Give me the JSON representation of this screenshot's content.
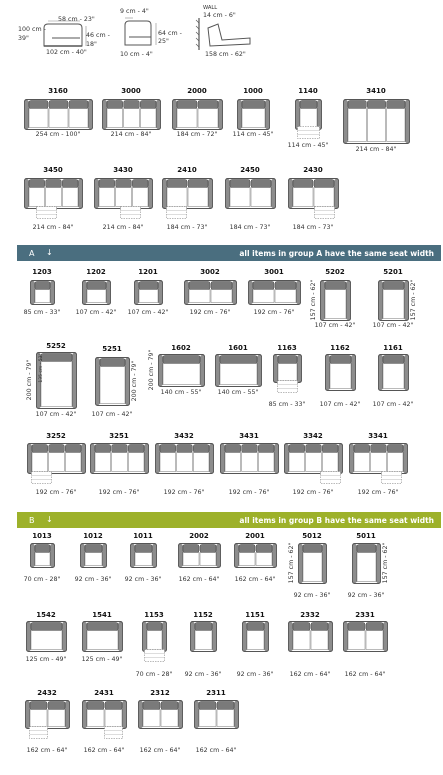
{
  "top_dims": {
    "d1_cm": "58 cm - 23\"",
    "d2_cm": "100 cm -",
    "d2_in": "39\"",
    "d3_cm": "46 cm -",
    "d3_in": "18\"",
    "d4": "102 cm - 40\"",
    "d5": "9 cm - 4\"",
    "d6_cm": "64 cm -",
    "d6_in": "25\"",
    "d7": "10 cm - 4\"",
    "wall": "WALL",
    "d8": "14 cm - 6\"",
    "d9": "158 cm - 62\""
  },
  "band_a": {
    "label": "A",
    "arrow": "↓",
    "note": "all items in group A have the same seat width",
    "color": "#4a6e7f"
  },
  "band_b": {
    "label": "B",
    "arrow": "↓",
    "note": "all items in group B have the same seat width",
    "color": "#9db12a"
  },
  "units": [
    {
      "id": "u3160",
      "code": "3160",
      "dim": "254 cm - 100\""
    },
    {
      "id": "u3000",
      "code": "3000",
      "dim": "214 cm - 84\""
    },
    {
      "id": "u2000",
      "code": "2000",
      "dim": "184 cm - 72\""
    },
    {
      "id": "u1000",
      "code": "1000",
      "dim": "114 cm - 45\""
    },
    {
      "id": "u1140",
      "code": "1140",
      "dim": "114 cm - 45\""
    },
    {
      "id": "u3410",
      "code": "3410",
      "dim": "214 cm - 84\""
    },
    {
      "id": "u3450",
      "code": "3450",
      "dim": "214 cm - 84\""
    },
    {
      "id": "u3430",
      "code": "3430",
      "dim": "214 cm - 84\""
    },
    {
      "id": "u2410",
      "code": "2410",
      "dim": "184 cm - 73\""
    },
    {
      "id": "u2450",
      "code": "2450",
      "dim": "184 cm - 73\""
    },
    {
      "id": "u2430",
      "code": "2430",
      "dim": "184 cm - 73\""
    },
    {
      "id": "u1203",
      "code": "1203",
      "dim": "85 cm - 33\""
    },
    {
      "id": "u1202",
      "code": "1202",
      "dim": "107 cm - 42\""
    },
    {
      "id": "u1201",
      "code": "1201",
      "dim": "107 cm - 42\""
    },
    {
      "id": "u3002",
      "code": "3002",
      "dim": "192 cm - 76\""
    },
    {
      "id": "u3001",
      "code": "3001",
      "dim": "192 cm - 76\""
    },
    {
      "id": "u5202",
      "code": "5202",
      "dim": "107 cm - 42\"",
      "side": "157 cm - 62\""
    },
    {
      "id": "u5201",
      "code": "5201",
      "dim": "107 cm - 42\"",
      "side": "157 cm - 62\""
    },
    {
      "id": "u5252",
      "code": "5252",
      "dim": "107 cm - 42\"",
      "side": "200 cm - 79\"",
      "inner": "135 cm - 53\""
    },
    {
      "id": "u5251",
      "code": "5251",
      "dim": "107 cm - 42\"",
      "side": "200 cm - 79\""
    },
    {
      "id": "u1602",
      "code": "1602",
      "dim": "140 cm - 55\"",
      "side": "200 cm - 79\""
    },
    {
      "id": "u1601",
      "code": "1601",
      "dim": "140 cm - 55\""
    },
    {
      "id": "u1163",
      "code": "1163",
      "dim": "85 cm - 33\""
    },
    {
      "id": "u1162",
      "code": "1162",
      "dim": "107 cm - 42\""
    },
    {
      "id": "u1161",
      "code": "1161",
      "dim": "107 cm - 42\""
    },
    {
      "id": "u3252",
      "code": "3252",
      "dim": "192 cm - 76\""
    },
    {
      "id": "u3251",
      "code": "3251",
      "dim": "192 cm - 76\""
    },
    {
      "id": "u3432",
      "code": "3432",
      "dim": "192 cm - 76\""
    },
    {
      "id": "u3431",
      "code": "3431",
      "dim": "192 cm - 76\""
    },
    {
      "id": "u3342",
      "code": "3342",
      "dim": "192 cm - 76\""
    },
    {
      "id": "u3341",
      "code": "3341",
      "dim": "192 cm - 76\""
    },
    {
      "id": "u1013",
      "code": "1013",
      "dim": "70 cm - 28\""
    },
    {
      "id": "u1012",
      "code": "1012",
      "dim": "92 cm - 36\""
    },
    {
      "id": "u1011",
      "code": "1011",
      "dim": "92 cm - 36\""
    },
    {
      "id": "u2002",
      "code": "2002",
      "dim": "162 cm - 64\""
    },
    {
      "id": "u2001",
      "code": "2001",
      "dim": "162 cm - 64\""
    },
    {
      "id": "u5012",
      "code": "5012",
      "dim": "92 cm - 36\"",
      "side": "157 cm - 62\""
    },
    {
      "id": "u5011",
      "code": "5011",
      "dim": "92 cm - 36\"",
      "side": "157 cm - 62\""
    },
    {
      "id": "u1542",
      "code": "1542",
      "dim": "125 cm - 49\""
    },
    {
      "id": "u1541",
      "code": "1541",
      "dim": "125 cm - 49\""
    },
    {
      "id": "u1153",
      "code": "1153",
      "dim": "70 cm - 28\""
    },
    {
      "id": "u1152",
      "code": "1152",
      "dim": "92 cm - 36\""
    },
    {
      "id": "u1151",
      "code": "1151",
      "dim": "92 cm - 36\""
    },
    {
      "id": "u2332",
      "code": "2332",
      "dim": "162 cm - 64\""
    },
    {
      "id": "u2331",
      "code": "2331",
      "dim": "162 cm - 64\""
    },
    {
      "id": "u2432",
      "code": "2432",
      "dim": "162 cm - 64\""
    },
    {
      "id": "u2431",
      "code": "2431",
      "dim": "162 cm - 64\""
    },
    {
      "id": "u2312",
      "code": "2312",
      "dim": "162 cm - 64\""
    },
    {
      "id": "u2311",
      "code": "2311",
      "dim": "162 cm - 64\""
    }
  ]
}
